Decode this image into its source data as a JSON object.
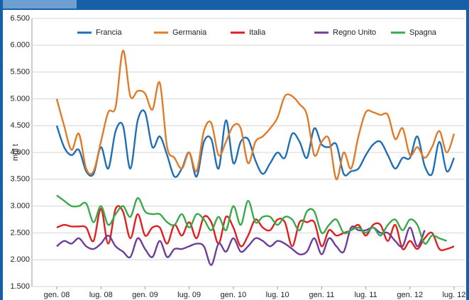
{
  "chart_data": {
    "type": "line",
    "y_label": "mgl t",
    "categories": [
      "gen. 08",
      null,
      null,
      null,
      null,
      null,
      "lug. 08",
      null,
      null,
      null,
      null,
      null,
      "gen. 09",
      null,
      null,
      null,
      null,
      null,
      "lug. 09",
      null,
      null,
      null,
      null,
      null,
      "gen. 10",
      null,
      null,
      null,
      null,
      null,
      "lug. 10",
      null,
      null,
      null,
      null,
      null,
      "gen. 11",
      null,
      null,
      null,
      null,
      null,
      "lug. 11",
      null,
      null,
      null,
      null,
      null,
      "gen. 12",
      null,
      null,
      null,
      null,
      null,
      "lug. 12"
    ],
    "series": [
      {
        "name": "Francia",
        "color": "#1f6fb5",
        "values": [
          4500,
          4100,
          3950,
          4050,
          3650,
          3600,
          4100,
          3700,
          4400,
          4500,
          3700,
          4600,
          4750,
          4100,
          4300,
          3950,
          3550,
          3700,
          4000,
          3550,
          4200,
          4250,
          3700,
          4600,
          3800,
          4200,
          4250,
          3850,
          3600,
          3800,
          4000,
          3900,
          4350,
          4200,
          3900,
          4450,
          4150,
          4100,
          4150,
          3600,
          3650,
          3700,
          3950,
          4150,
          4200,
          3950,
          3700,
          3900,
          3900,
          4300,
          3750,
          3600,
          4200,
          3650,
          3900
        ]
      },
      {
        "name": "Germania",
        "color": "#e07b2a",
        "values": [
          5000,
          4500,
          4050,
          4350,
          3700,
          3650,
          4200,
          4750,
          4850,
          5900,
          5050,
          5150,
          5100,
          4800,
          5300,
          4100,
          3900,
          3700,
          4000,
          3650,
          4400,
          4550,
          3950,
          4200,
          4500,
          4450,
          3800,
          4200,
          4300,
          4450,
          4650,
          5050,
          5050,
          4900,
          4700,
          3950,
          4200,
          4250,
          3500,
          4000,
          3700,
          4300,
          4750,
          4750,
          4700,
          4700,
          4250,
          4450,
          3950,
          4100,
          3900,
          4100,
          4400,
          4000,
          4350
        ]
      },
      {
        "name": "Italia",
        "color": "#e02020",
        "values": [
          2600,
          2650,
          2620,
          2620,
          2600,
          2350,
          2950,
          2300,
          2950,
          2900,
          2400,
          2850,
          2450,
          2600,
          2600,
          2300,
          2650,
          2450,
          2700,
          2400,
          2800,
          2700,
          2300,
          2800,
          2600,
          2250,
          2450,
          2750,
          2600,
          2550,
          2750,
          2700,
          2250,
          2700,
          2700,
          2700,
          2250,
          2550,
          2450,
          2500,
          2550,
          2650,
          2450,
          2650,
          2650,
          2350,
          2650,
          2200,
          2350,
          2200,
          2400,
          2500,
          2200,
          2200,
          2250
        ]
      },
      {
        "name": "Regno Unito",
        "color": "#6e3d99",
        "values": [
          2250,
          2350,
          2300,
          2400,
          2250,
          2200,
          2300,
          2450,
          2250,
          2150,
          2050,
          2400,
          2200,
          2050,
          2350,
          2050,
          2200,
          2200,
          2250,
          2300,
          2250,
          1900,
          2300,
          2150,
          2400,
          2150,
          2250,
          2400,
          2350,
          2250,
          2350,
          2300,
          2200,
          2100,
          2150,
          2400,
          2100,
          2400,
          2250,
          2150,
          2600,
          2550,
          2550,
          2600,
          2500,
          2500,
          2350,
          2250,
          2600,
          2250,
          2550,
          null,
          null,
          null,
          null
        ]
      },
      {
        "name": "Spagna",
        "color": "#3aa94a",
        "values": [
          3200,
          3100,
          3000,
          3000,
          3050,
          2700,
          3000,
          2650,
          2850,
          3000,
          2800,
          3150,
          2900,
          2850,
          2850,
          2700,
          2650,
          2850,
          2600,
          2850,
          2750,
          2550,
          2800,
          2550,
          3000,
          2650,
          3100,
          2700,
          2800,
          2800,
          2650,
          2800,
          2750,
          2550,
          2900,
          2900,
          2500,
          2650,
          2750,
          2500,
          2550,
          2600,
          2500,
          2600,
          2450,
          2650,
          2750,
          2550,
          2750,
          2650,
          2300,
          2450,
          2400,
          2350,
          null
        ]
      }
    ],
    "ylim": [
      1500,
      6500
    ],
    "yticks": [
      {
        "value": 1500,
        "label": "1.500"
      },
      {
        "value": 2000,
        "label": "2.000"
      },
      {
        "value": 2500,
        "label": "2.500"
      },
      {
        "value": 3000,
        "label": "3.000"
      },
      {
        "value": 3500,
        "label": "3.500"
      },
      {
        "value": 4000,
        "label": "4.000"
      },
      {
        "value": 4500,
        "label": "4.500"
      },
      {
        "value": 5000,
        "label": "5.000"
      },
      {
        "value": 5500,
        "label": "5.500"
      },
      {
        "value": 6000,
        "label": "6.000"
      },
      {
        "value": 6500,
        "label": "6.500"
      }
    ],
    "grid": true
  }
}
